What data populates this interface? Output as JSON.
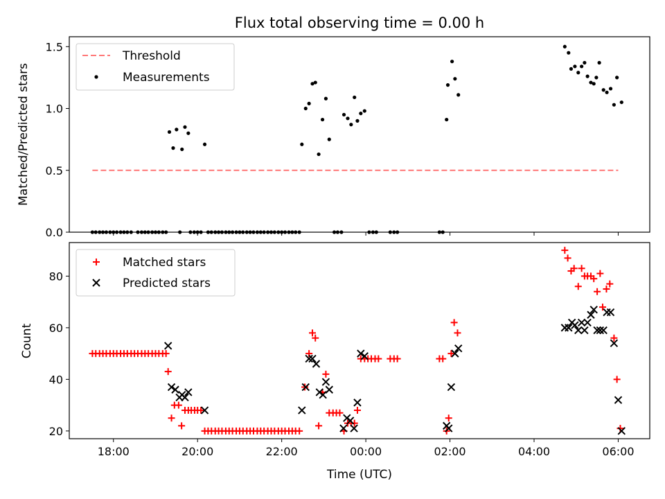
{
  "chart_data": [
    {
      "type": "scatter",
      "title": "Flux total observing time = 0.00 h",
      "xlabel": "",
      "ylabel": "Matched/Predicted stars",
      "ylim": [
        0,
        1.58
      ],
      "yticks": [
        0.0,
        0.5,
        1.0,
        1.5
      ],
      "ytick_labels": [
        "0.0",
        "0.5",
        "1.0",
        "1.5"
      ],
      "x_hour_range": [
        16.95,
        30.75
      ],
      "xticks_hours": [
        18,
        20,
        22,
        24,
        26,
        28,
        30
      ],
      "grid": false,
      "legend_position": "upper left",
      "threshold": {
        "name": "Threshold",
        "value": 0.5,
        "x_hours": [
          17.5,
          30.0
        ],
        "color": "#ff7777",
        "style": "dashed"
      },
      "series": [
        {
          "name": "Measurements",
          "color": "#000000",
          "marker": "dot",
          "points": [
            [
              17.5,
              0
            ],
            [
              17.58,
              0
            ],
            [
              17.67,
              0
            ],
            [
              17.75,
              0
            ],
            [
              17.83,
              0
            ],
            [
              17.92,
              0
            ],
            [
              18.0,
              0
            ],
            [
              18.08,
              0
            ],
            [
              18.17,
              0
            ],
            [
              18.25,
              0
            ],
            [
              18.33,
              0
            ],
            [
              18.42,
              0
            ],
            [
              18.58,
              0
            ],
            [
              18.67,
              0
            ],
            [
              18.75,
              0
            ],
            [
              18.83,
              0
            ],
            [
              18.92,
              0
            ],
            [
              19.0,
              0
            ],
            [
              19.08,
              0
            ],
            [
              19.17,
              0
            ],
            [
              19.25,
              0
            ],
            [
              19.33,
              0.81
            ],
            [
              19.42,
              0.68
            ],
            [
              19.5,
              0.83
            ],
            [
              19.58,
              0
            ],
            [
              19.63,
              0.67
            ],
            [
              19.7,
              0.85
            ],
            [
              19.78,
              0.8
            ],
            [
              19.83,
              0
            ],
            [
              19.92,
              0
            ],
            [
              20.0,
              0
            ],
            [
              20.08,
              0
            ],
            [
              20.17,
              0.71
            ],
            [
              20.25,
              0
            ],
            [
              20.33,
              0
            ],
            [
              20.42,
              0
            ],
            [
              20.5,
              0
            ],
            [
              20.58,
              0
            ],
            [
              20.67,
              0
            ],
            [
              20.75,
              0
            ],
            [
              20.83,
              0
            ],
            [
              20.92,
              0
            ],
            [
              21.0,
              0
            ],
            [
              21.08,
              0
            ],
            [
              21.17,
              0
            ],
            [
              21.25,
              0
            ],
            [
              21.33,
              0
            ],
            [
              21.42,
              0
            ],
            [
              21.5,
              0
            ],
            [
              21.58,
              0
            ],
            [
              21.67,
              0
            ],
            [
              21.75,
              0
            ],
            [
              21.83,
              0
            ],
            [
              21.92,
              0
            ],
            [
              22.0,
              0
            ],
            [
              22.08,
              0
            ],
            [
              22.17,
              0
            ],
            [
              22.25,
              0
            ],
            [
              22.33,
              0
            ],
            [
              22.42,
              0
            ],
            [
              22.48,
              0.71
            ],
            [
              22.57,
              1.0
            ],
            [
              22.65,
              1.04
            ],
            [
              22.73,
              1.2
            ],
            [
              22.8,
              1.21
            ],
            [
              22.88,
              0.63
            ],
            [
              22.97,
              0.91
            ],
            [
              23.05,
              1.08
            ],
            [
              23.13,
              0.75
            ],
            [
              23.25,
              0
            ],
            [
              23.33,
              0
            ],
            [
              23.42,
              0
            ],
            [
              23.48,
              0.95
            ],
            [
              23.57,
              0.92
            ],
            [
              23.65,
              0.87
            ],
            [
              23.73,
              1.09
            ],
            [
              23.8,
              0.9
            ],
            [
              23.88,
              0.96
            ],
            [
              23.97,
              0.98
            ],
            [
              24.08,
              0
            ],
            [
              24.17,
              0
            ],
            [
              24.25,
              0
            ],
            [
              24.58,
              0
            ],
            [
              24.67,
              0
            ],
            [
              24.75,
              0
            ],
            [
              25.75,
              0
            ],
            [
              25.83,
              0
            ],
            [
              25.92,
              0.91
            ],
            [
              25.95,
              1.19
            ],
            [
              26.05,
              1.38
            ],
            [
              26.12,
              1.24
            ],
            [
              26.2,
              1.11
            ],
            [
              28.73,
              1.5
            ],
            [
              28.82,
              1.45
            ],
            [
              28.88,
              1.32
            ],
            [
              28.97,
              1.34
            ],
            [
              29.05,
              1.29
            ],
            [
              29.13,
              1.34
            ],
            [
              29.2,
              1.37
            ],
            [
              29.27,
              1.26
            ],
            [
              29.35,
              1.21
            ],
            [
              29.42,
              1.2
            ],
            [
              29.48,
              1.25
            ],
            [
              29.55,
              1.37
            ],
            [
              29.65,
              1.15
            ],
            [
              29.73,
              1.13
            ],
            [
              29.82,
              1.16
            ],
            [
              29.9,
              1.03
            ],
            [
              29.97,
              1.25
            ],
            [
              30.08,
              1.05
            ]
          ]
        }
      ]
    },
    {
      "type": "scatter",
      "title": "",
      "xlabel": "Time (UTC)",
      "ylabel": "Count",
      "ylim": [
        17,
        93
      ],
      "yticks": [
        20,
        40,
        60,
        80
      ],
      "ytick_labels": [
        "20",
        "40",
        "60",
        "80"
      ],
      "x_hour_range": [
        16.95,
        30.75
      ],
      "xticks_hours": [
        18,
        20,
        22,
        24,
        26,
        28,
        30
      ],
      "xtick_labels": [
        "18:00",
        "20:00",
        "22:00",
        "00:00",
        "02:00",
        "04:00",
        "06:00"
      ],
      "grid": false,
      "legend_position": "upper left",
      "series": [
        {
          "name": "Matched stars",
          "color": "#ff0000",
          "marker": "plus",
          "points": [
            [
              17.5,
              50
            ],
            [
              17.58,
              50
            ],
            [
              17.67,
              50
            ],
            [
              17.75,
              50
            ],
            [
              17.83,
              50
            ],
            [
              17.92,
              50
            ],
            [
              18.0,
              50
            ],
            [
              18.08,
              50
            ],
            [
              18.17,
              50
            ],
            [
              18.25,
              50
            ],
            [
              18.33,
              50
            ],
            [
              18.42,
              50
            ],
            [
              18.5,
              50
            ],
            [
              18.58,
              50
            ],
            [
              18.67,
              50
            ],
            [
              18.75,
              50
            ],
            [
              18.83,
              50
            ],
            [
              18.92,
              50
            ],
            [
              19.0,
              50
            ],
            [
              19.08,
              50
            ],
            [
              19.17,
              50
            ],
            [
              19.25,
              50
            ],
            [
              19.3,
              43
            ],
            [
              19.38,
              25
            ],
            [
              19.45,
              30
            ],
            [
              19.55,
              30
            ],
            [
              19.62,
              22
            ],
            [
              19.7,
              28
            ],
            [
              19.78,
              28
            ],
            [
              19.85,
              28
            ],
            [
              19.93,
              28
            ],
            [
              20.0,
              28
            ],
            [
              20.08,
              28
            ],
            [
              20.17,
              20
            ],
            [
              20.25,
              20
            ],
            [
              20.33,
              20
            ],
            [
              20.42,
              20
            ],
            [
              20.5,
              20
            ],
            [
              20.58,
              20
            ],
            [
              20.67,
              20
            ],
            [
              20.75,
              20
            ],
            [
              20.83,
              20
            ],
            [
              20.92,
              20
            ],
            [
              21.0,
              20
            ],
            [
              21.08,
              20
            ],
            [
              21.17,
              20
            ],
            [
              21.25,
              20
            ],
            [
              21.33,
              20
            ],
            [
              21.42,
              20
            ],
            [
              21.5,
              20
            ],
            [
              21.58,
              20
            ],
            [
              21.67,
              20
            ],
            [
              21.75,
              20
            ],
            [
              21.83,
              20
            ],
            [
              21.92,
              20
            ],
            [
              22.0,
              20
            ],
            [
              22.08,
              20
            ],
            [
              22.17,
              20
            ],
            [
              22.25,
              20
            ],
            [
              22.33,
              20
            ],
            [
              22.42,
              20
            ],
            [
              22.55,
              37
            ],
            [
              22.65,
              50
            ],
            [
              22.73,
              58
            ],
            [
              22.8,
              56
            ],
            [
              22.88,
              22
            ],
            [
              22.97,
              35
            ],
            [
              23.05,
              42
            ],
            [
              23.13,
              27
            ],
            [
              23.22,
              27
            ],
            [
              23.3,
              27
            ],
            [
              23.38,
              27
            ],
            [
              23.48,
              20
            ],
            [
              23.57,
              23
            ],
            [
              23.65,
              23
            ],
            [
              23.73,
              23
            ],
            [
              23.8,
              28
            ],
            [
              23.88,
              48
            ],
            [
              23.97,
              48
            ],
            [
              24.05,
              48
            ],
            [
              24.13,
              48
            ],
            [
              24.22,
              48
            ],
            [
              24.3,
              48
            ],
            [
              24.58,
              48
            ],
            [
              24.67,
              48
            ],
            [
              24.75,
              48
            ],
            [
              25.75,
              48
            ],
            [
              25.83,
              48
            ],
            [
              25.92,
              20
            ],
            [
              25.97,
              25
            ],
            [
              26.03,
              50
            ],
            [
              26.1,
              62
            ],
            [
              26.18,
              58
            ],
            [
              28.73,
              90
            ],
            [
              28.8,
              87
            ],
            [
              28.88,
              82
            ],
            [
              28.95,
              83
            ],
            [
              29.05,
              76
            ],
            [
              29.13,
              83
            ],
            [
              29.2,
              80
            ],
            [
              29.27,
              80
            ],
            [
              29.35,
              80
            ],
            [
              29.42,
              79
            ],
            [
              29.5,
              74
            ],
            [
              29.57,
              81
            ],
            [
              29.63,
              68
            ],
            [
              29.72,
              75
            ],
            [
              29.8,
              77
            ],
            [
              29.9,
              56
            ],
            [
              29.97,
              40
            ],
            [
              30.05,
              21
            ]
          ]
        },
        {
          "name": "Predicted stars",
          "color": "#000000",
          "marker": "x",
          "points": [
            [
              19.3,
              53
            ],
            [
              19.38,
              37
            ],
            [
              19.47,
              36
            ],
            [
              19.57,
              33
            ],
            [
              19.63,
              34
            ],
            [
              19.7,
              33
            ],
            [
              19.78,
              35
            ],
            [
              20.17,
              28
            ],
            [
              22.48,
              28
            ],
            [
              22.57,
              37
            ],
            [
              22.65,
              48
            ],
            [
              22.73,
              48
            ],
            [
              22.82,
              46
            ],
            [
              22.9,
              35
            ],
            [
              22.98,
              34
            ],
            [
              23.05,
              39
            ],
            [
              23.13,
              36
            ],
            [
              23.47,
              21
            ],
            [
              23.55,
              25
            ],
            [
              23.63,
              24
            ],
            [
              23.72,
              21
            ],
            [
              23.8,
              31
            ],
            [
              23.88,
              50
            ],
            [
              23.97,
              49
            ],
            [
              25.92,
              22
            ],
            [
              25.97,
              21
            ],
            [
              26.03,
              37
            ],
            [
              26.12,
              50
            ],
            [
              26.2,
              52
            ],
            [
              28.73,
              60
            ],
            [
              28.82,
              60
            ],
            [
              28.9,
              62
            ],
            [
              28.97,
              61
            ],
            [
              29.05,
              59
            ],
            [
              29.13,
              62
            ],
            [
              29.2,
              59
            ],
            [
              29.27,
              62
            ],
            [
              29.35,
              65
            ],
            [
              29.42,
              67
            ],
            [
              29.5,
              59
            ],
            [
              29.57,
              59
            ],
            [
              29.65,
              59
            ],
            [
              29.73,
              66
            ],
            [
              29.82,
              66
            ],
            [
              29.9,
              54
            ],
            [
              30.0,
              32
            ],
            [
              30.08,
              20
            ]
          ]
        }
      ]
    }
  ]
}
